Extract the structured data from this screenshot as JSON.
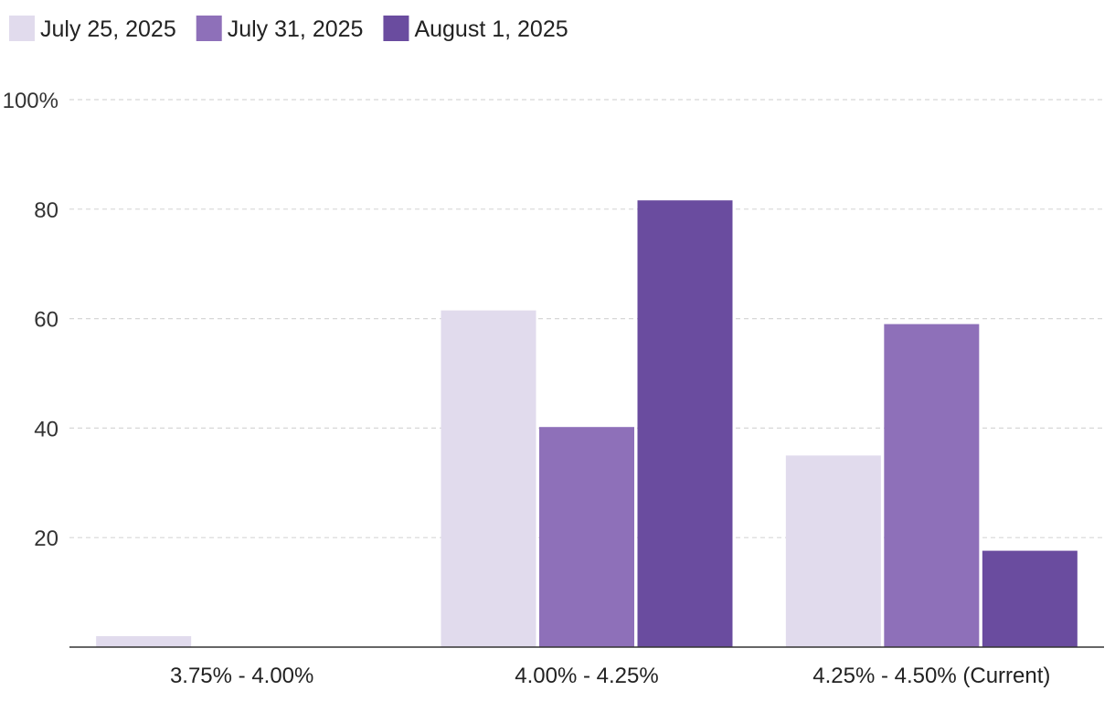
{
  "chart_data": {
    "type": "bar",
    "title": "",
    "xlabel": "",
    "ylabel": "",
    "categories": [
      "3.75% - 4.00%",
      "4.00% - 4.25%",
      "4.25% - 4.50% (Current)"
    ],
    "series": [
      {
        "name": "July 25, 2025",
        "color": "#e1dbed",
        "values": [
          2.0,
          61.5,
          35.0
        ]
      },
      {
        "name": "July 31, 2025",
        "color": "#8e70b9",
        "values": [
          0,
          40.2,
          59.0
        ]
      },
      {
        "name": "August 1, 2025",
        "color": "#6a4c9f",
        "values": [
          0,
          81.6,
          17.6
        ]
      }
    ],
    "ylim": [
      0,
      100
    ],
    "y_ticks": [
      {
        "value": 20,
        "label": "20"
      },
      {
        "value": 40,
        "label": "40"
      },
      {
        "value": 60,
        "label": "60"
      },
      {
        "value": 80,
        "label": "80"
      },
      {
        "value": 100,
        "label": "100%"
      }
    ],
    "grid": true,
    "legend_position": "top-left"
  }
}
